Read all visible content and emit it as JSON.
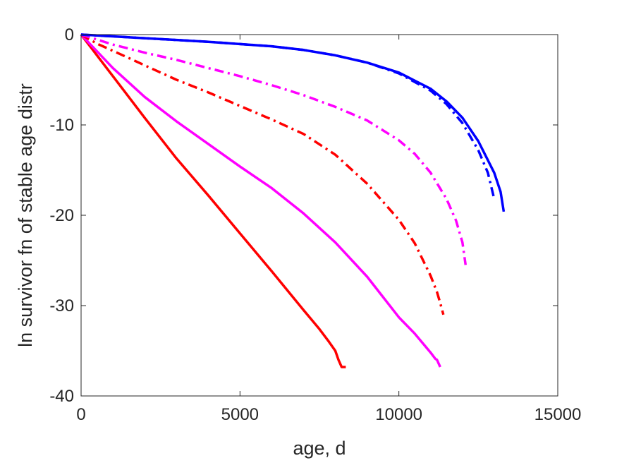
{
  "chart_data": {
    "type": "line",
    "title": "",
    "xlabel": "age, d",
    "ylabel": "ln survivor fn of stable age distr",
    "xlim": [
      0,
      15000
    ],
    "ylim": [
      -40,
      0
    ],
    "xticks": [
      0,
      5000,
      10000,
      15000
    ],
    "yticks": [
      0,
      -10,
      -20,
      -30,
      -40
    ],
    "xtick_labels": [
      "0",
      "5000",
      "10000",
      "15000"
    ],
    "ytick_labels": [
      "0",
      "-10",
      "-20",
      "-30",
      "-40"
    ],
    "grid": false,
    "legend": "none",
    "series": [
      {
        "color": "#ff0000",
        "style": "solid",
        "x": [
          0,
          500,
          1000,
          2000,
          3000,
          4000,
          5000,
          6000,
          7000,
          7500,
          7800,
          8000,
          8100,
          8200,
          8300,
          8330
        ],
        "y": [
          0,
          -2.3,
          -4.6,
          -9.2,
          -13.7,
          -17.8,
          -22.0,
          -26.2,
          -30.5,
          -32.6,
          -34.0,
          -35.0,
          -36.0,
          -36.8,
          -36.8,
          -36.8
        ]
      },
      {
        "color": "#ff00ff",
        "style": "solid",
        "x": [
          0,
          1000,
          2000,
          3000,
          4000,
          5000,
          6000,
          7000,
          8000,
          9000,
          10000,
          10500,
          11000,
          11150,
          11200,
          11300
        ],
        "y": [
          0,
          -3.7,
          -6.9,
          -9.6,
          -12.1,
          -14.6,
          -17.0,
          -19.8,
          -23.0,
          -26.8,
          -31.3,
          -33.1,
          -35.2,
          -35.9,
          -36.0,
          -36.8
        ]
      },
      {
        "color": "#ff0000",
        "style": "dashdot",
        "x": [
          0,
          500,
          1000,
          2000,
          3000,
          4000,
          5000,
          6000,
          7000,
          8000,
          9000,
          10000,
          10500,
          11000,
          11200,
          11300,
          11400
        ],
        "y": [
          0,
          -1.0,
          -1.8,
          -3.4,
          -5.0,
          -6.4,
          -7.9,
          -9.4,
          -11.0,
          -13.3,
          -16.5,
          -20.5,
          -23.1,
          -26.7,
          -28.5,
          -29.7,
          -31.0
        ]
      },
      {
        "color": "#ff00ff",
        "style": "dashdot",
        "x": [
          0,
          1000,
          2000,
          3000,
          4000,
          5000,
          6000,
          7000,
          8000,
          9000,
          10000,
          10500,
          11000,
          11500,
          11800,
          12000,
          12100
        ],
        "y": [
          0,
          -1.1,
          -2.0,
          -2.8,
          -3.7,
          -4.6,
          -5.6,
          -6.7,
          -8.0,
          -9.5,
          -11.7,
          -13.2,
          -15.3,
          -18.2,
          -20.6,
          -23.0,
          -25.5
        ]
      },
      {
        "color": "#0000ff",
        "style": "solid",
        "x": [
          0,
          2000,
          4000,
          6000,
          7000,
          8000,
          9000,
          10000,
          11000,
          11500,
          12000,
          12500,
          13000,
          13200,
          13300
        ],
        "y": [
          0,
          -0.4,
          -0.8,
          -1.3,
          -1.7,
          -2.3,
          -3.1,
          -4.2,
          -6.0,
          -7.4,
          -9.2,
          -11.8,
          -15.3,
          -17.4,
          -19.6
        ]
      },
      {
        "color": "#0000ff",
        "style": "dashdot",
        "x": [
          0,
          2000,
          4000,
          6000,
          7000,
          8000,
          9000,
          10000,
          11000,
          11500,
          12000,
          12500,
          12800,
          13000
        ],
        "y": [
          0,
          -0.4,
          -0.8,
          -1.3,
          -1.7,
          -2.3,
          -3.1,
          -4.3,
          -6.2,
          -7.7,
          -9.8,
          -12.8,
          -15.3,
          -18.2
        ]
      }
    ]
  }
}
